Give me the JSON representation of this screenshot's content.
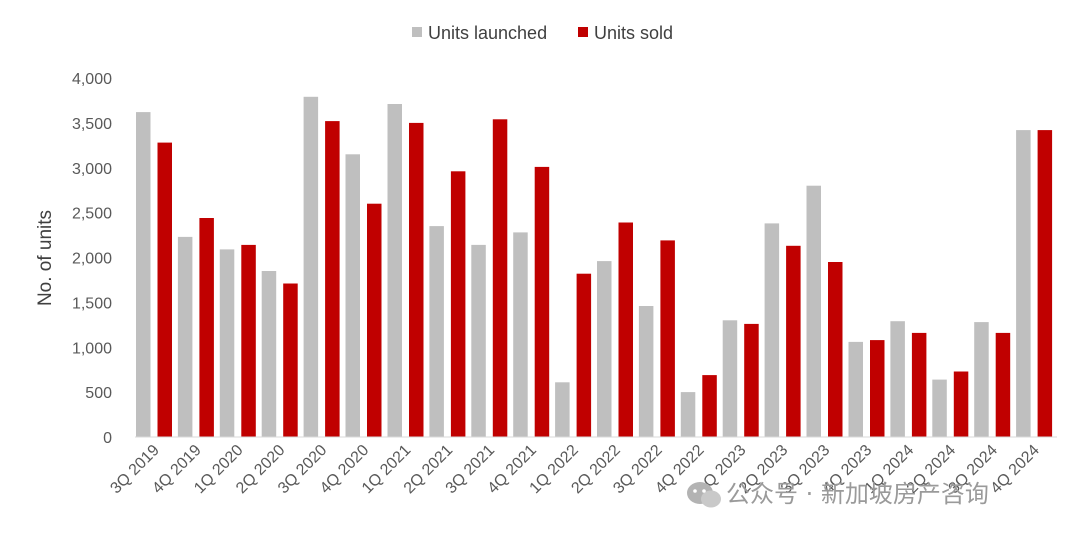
{
  "chart_data": {
    "type": "bar",
    "title": "",
    "xlabel": "",
    "ylabel": "No. of units",
    "ylim": [
      0,
      4000
    ],
    "yticks": [
      "0",
      "500",
      "1,000",
      "1,500",
      "2,000",
      "2,500",
      "3,000",
      "3,500",
      "4,000"
    ],
    "ytick_values": [
      0,
      500,
      1000,
      1500,
      2000,
      2500,
      3000,
      3500,
      4000
    ],
    "grid": false,
    "legend_position": "top-center",
    "categories": [
      "3Q 2019",
      "4Q 2019",
      "1Q 2020",
      "2Q 2020",
      "3Q 2020",
      "4Q 2020",
      "1Q 2021",
      "2Q 2021",
      "3Q 2021",
      "4Q 2021",
      "1Q 2022",
      "2Q 2022",
      "3Q 2022",
      "4Q 2022",
      "1Q 2023",
      "2Q 2023",
      "3Q 2023",
      "4Q 2023",
      "1Q 2024",
      "2Q 2024",
      "3Q 2024",
      "4Q 2024"
    ],
    "series": [
      {
        "name": "Units launched",
        "color": "#bfbfbf",
        "values": [
          3620,
          2230,
          2090,
          1850,
          3790,
          3150,
          3710,
          2350,
          2140,
          2280,
          610,
          1960,
          1460,
          500,
          1300,
          2380,
          2800,
          1060,
          1290,
          640,
          1280,
          3420
        ]
      },
      {
        "name": "Units sold",
        "color": "#c00000",
        "values": [
          3280,
          2440,
          2140,
          1710,
          3520,
          2600,
          3500,
          2960,
          3540,
          3010,
          1820,
          2390,
          2190,
          690,
          1260,
          2130,
          1950,
          1080,
          1160,
          730,
          1160,
          3420
        ]
      }
    ],
    "watermark": "公众号 · 新加坡房产咨询"
  }
}
